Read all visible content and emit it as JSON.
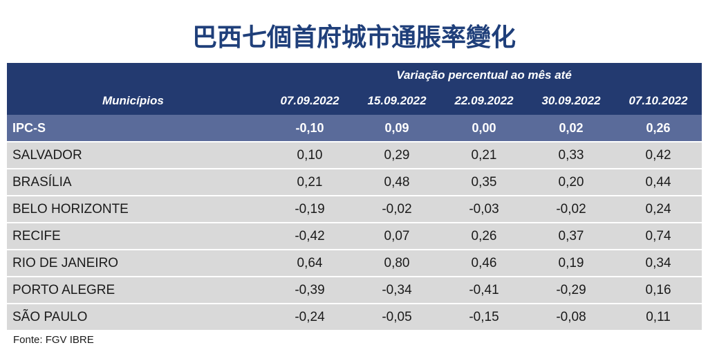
{
  "title": "巴西七個首府城市通脹率變化",
  "table": {
    "group_header": "Variação percentual ao mês até",
    "first_col_header": "Municípios",
    "dates": [
      "07.09.2022",
      "15.09.2022",
      "22.09.2022",
      "30.09.2022",
      "07.10.2022"
    ],
    "rows": [
      {
        "name": "IPC-S",
        "values": [
          "-0,10",
          "0,09",
          "0,00",
          "0,02",
          "0,26"
        ],
        "highlight": true
      },
      {
        "name": "SALVADOR",
        "values": [
          "0,10",
          "0,29",
          "0,21",
          "0,33",
          "0,42"
        ]
      },
      {
        "name": "BRASÍLIA",
        "values": [
          "0,21",
          "0,48",
          "0,35",
          "0,20",
          "0,44"
        ]
      },
      {
        "name": "BELO HORIZONTE",
        "values": [
          "-0,19",
          "-0,02",
          "-0,03",
          "-0,02",
          "0,24"
        ]
      },
      {
        "name": "RECIFE",
        "values": [
          "-0,42",
          "0,07",
          "0,26",
          "0,37",
          "0,74"
        ]
      },
      {
        "name": "RIO DE JANEIRO",
        "values": [
          "0,64",
          "0,80",
          "0,46",
          "0,19",
          "0,34"
        ]
      },
      {
        "name": "PORTO ALEGRE",
        "values": [
          "-0,39",
          "-0,34",
          "-0,41",
          "-0,29",
          "0,16"
        ]
      },
      {
        "name": "SÃO PAULO",
        "values": [
          "-0,24",
          "-0,05",
          "-0,15",
          "-0,08",
          "0,11"
        ]
      }
    ]
  },
  "source": "Fonte: FGV IBRE",
  "colors": {
    "title": "#1f3f7a",
    "header_bg": "#233a70",
    "highlight_row_bg": "#5a6b9a",
    "row_bg": "#d9d9d9"
  },
  "chart_data": {
    "type": "table",
    "title": "巴西七個首府城市通脹率變化",
    "columns": [
      "Municípios",
      "07.09.2022",
      "15.09.2022",
      "22.09.2022",
      "30.09.2022",
      "07.10.2022"
    ],
    "rows": [
      [
        "IPC-S",
        -0.1,
        0.09,
        0.0,
        0.02,
        0.26
      ],
      [
        "SALVADOR",
        0.1,
        0.29,
        0.21,
        0.33,
        0.42
      ],
      [
        "BRASÍLIA",
        0.21,
        0.48,
        0.35,
        0.2,
        0.44
      ],
      [
        "BELO HORIZONTE",
        -0.19,
        -0.02,
        -0.03,
        -0.02,
        0.24
      ],
      [
        "RECIFE",
        -0.42,
        0.07,
        0.26,
        0.37,
        0.74
      ],
      [
        "RIO DE JANEIRO",
        0.64,
        0.8,
        0.46,
        0.19,
        0.34
      ],
      [
        "PORTO ALEGRE",
        -0.39,
        -0.34,
        -0.41,
        -0.29,
        0.16
      ],
      [
        "SÃO PAULO",
        -0.24,
        -0.05,
        -0.15,
        -0.08,
        0.11
      ]
    ]
  }
}
